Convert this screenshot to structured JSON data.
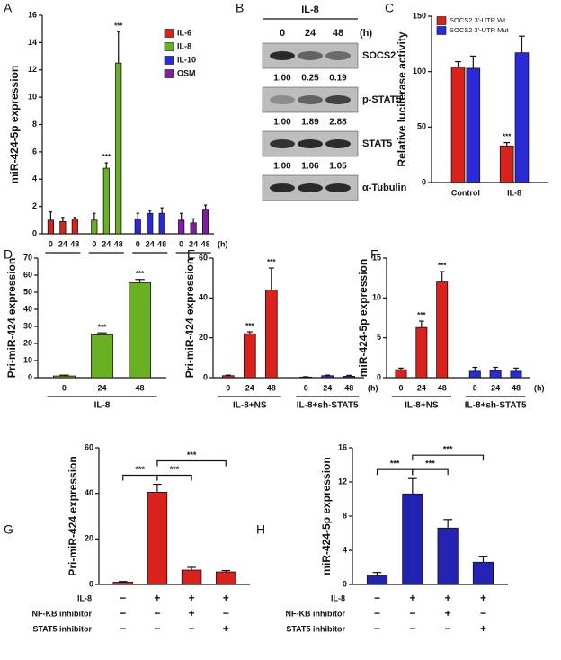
{
  "chart_data": [
    {
      "type": "bar",
      "panel": "A",
      "ylabel": "miR-424-5p expression",
      "ylim": [
        0,
        16
      ],
      "yticks": [
        0,
        2,
        4,
        6,
        8,
        10,
        12,
        14,
        16
      ],
      "xunit": "(h)",
      "legend": "upper right",
      "groups": [
        {
          "categories": [
            "0",
            "24",
            "48"
          ]
        },
        {
          "categories": [
            "0",
            "24",
            "48"
          ]
        },
        {
          "categories": [
            "0",
            "24",
            "48"
          ]
        },
        {
          "categories": [
            "0",
            "24",
            "48"
          ]
        }
      ],
      "series": [
        {
          "name": "IL-6",
          "color": "#d9221c",
          "values": [
            1.0,
            0.9,
            1.1,
            null,
            null,
            null,
            null,
            null,
            null,
            null,
            null,
            null
          ],
          "errors": [
            0.6,
            0.3,
            0.1,
            null,
            null,
            null,
            null,
            null,
            null,
            null,
            null,
            null
          ]
        },
        {
          "name": "IL-8",
          "color": "#6ab023",
          "values": [
            null,
            null,
            null,
            1.0,
            4.8,
            12.5,
            null,
            null,
            null,
            null,
            null,
            null
          ],
          "errors": [
            null,
            null,
            null,
            0.5,
            0.4,
            2.3,
            null,
            null,
            null,
            null,
            null,
            null
          ],
          "significance": [
            null,
            null,
            null,
            null,
            "***",
            "***",
            null,
            null,
            null,
            null,
            null,
            null
          ]
        },
        {
          "name": "IL-10",
          "color": "#2a2ad8",
          "values": [
            null,
            null,
            null,
            null,
            null,
            null,
            1.1,
            1.5,
            1.5,
            null,
            null,
            null
          ],
          "errors": [
            null,
            null,
            null,
            null,
            null,
            null,
            0.4,
            0.2,
            0.4,
            null,
            null,
            null
          ]
        },
        {
          "name": "OSM",
          "color": "#7d1fa0",
          "values": [
            null,
            null,
            null,
            null,
            null,
            null,
            null,
            null,
            null,
            1.0,
            0.8,
            1.8
          ],
          "errors": [
            null,
            null,
            null,
            null,
            null,
            null,
            null,
            null,
            null,
            0.5,
            0.3,
            0.3
          ]
        }
      ]
    },
    {
      "type": "bar",
      "panel": "C",
      "ylabel": "Relative luciferase activity",
      "ylim": [
        0,
        150
      ],
      "yticks": [
        0,
        50,
        100,
        150
      ],
      "legend": "upper left",
      "categories": [
        "Control",
        "IL-8"
      ],
      "series": [
        {
          "name": "SOCS2 3'-UTR Wt",
          "color": "#d9221c",
          "values": [
            104,
            33
          ],
          "errors": [
            5,
            3
          ],
          "significance": [
            null,
            "***"
          ]
        },
        {
          "name": "SOCS2 3'-UTR Mut",
          "color": "#2a2ad8",
          "values": [
            103,
            117
          ],
          "errors": [
            11,
            15
          ]
        }
      ]
    },
    {
      "type": "bar",
      "panel": "D",
      "ylabel": "Pri-miR-424 expression",
      "ylim": [
        0,
        70
      ],
      "yticks": [
        0,
        10,
        20,
        30,
        40,
        50,
        60,
        70
      ],
      "groups": [
        {
          "label": "IL-8",
          "categories": [
            "0",
            "24",
            "48"
          ]
        }
      ],
      "series": [
        {
          "color": "#6ab023",
          "values": [
            1,
            25,
            55.5
          ],
          "errors": [
            0.5,
            1.2,
            2
          ],
          "significance": [
            null,
            "***",
            "***"
          ]
        }
      ]
    },
    {
      "type": "bar",
      "panel": "E",
      "ylabel": "Pri-miR-424 expression",
      "ylim": [
        0,
        60
      ],
      "yticks": [
        0,
        20,
        40,
        60
      ],
      "xunit": "(h)",
      "groups": [
        {
          "label": "IL-8+NS",
          "categories": [
            "0",
            "24",
            "48"
          ]
        },
        {
          "label": "IL-8+sh-STAT5",
          "categories": [
            "0",
            "24",
            "48"
          ]
        }
      ],
      "series": [
        {
          "color": "#d9221c",
          "values": [
            1,
            22,
            44,
            null,
            null,
            null
          ],
          "errors": [
            0.3,
            1,
            11,
            null,
            null,
            null
          ],
          "significance": [
            null,
            "***",
            "***",
            null,
            null,
            null
          ]
        },
        {
          "color": "#2a2ad8",
          "values": [
            null,
            null,
            null,
            0.3,
            1,
            0.7
          ],
          "errors": [
            null,
            null,
            null,
            0.2,
            0.3,
            0.5
          ]
        }
      ]
    },
    {
      "type": "bar",
      "panel": "F",
      "ylabel": "miR-424-5p expression",
      "ylim": [
        0,
        15
      ],
      "yticks": [
        0,
        5,
        10,
        15
      ],
      "xunit": "(h)",
      "groups": [
        {
          "label": "IL-8+NS",
          "categories": [
            "0",
            "24",
            "48"
          ]
        },
        {
          "label": "IL-8+sh-STAT5",
          "categories": [
            "0",
            "24",
            "48"
          ]
        }
      ],
      "series": [
        {
          "color": "#d9221c",
          "values": [
            1,
            6.3,
            12,
            null,
            null,
            null
          ],
          "errors": [
            0.2,
            0.8,
            1.3,
            null,
            null,
            null
          ],
          "significance": [
            null,
            "***",
            "***",
            null,
            null,
            null
          ]
        },
        {
          "color": "#2a2ad8",
          "values": [
            null,
            null,
            null,
            0.8,
            0.9,
            0.8
          ],
          "errors": [
            null,
            null,
            null,
            0.5,
            0.4,
            0.4
          ]
        }
      ]
    },
    {
      "type": "bar",
      "panel": "G",
      "ylabel": "Pri-miR-424 expression",
      "ylim": [
        0,
        60
      ],
      "yticks": [
        0,
        20,
        40,
        60
      ],
      "categories": [
        null,
        null,
        null,
        null
      ],
      "series": [
        {
          "color": "#d9221c",
          "values": [
            1,
            40.5,
            6.3,
            5.5
          ],
          "errors": [
            0.3,
            3.5,
            1.2,
            0.6
          ]
        }
      ],
      "brackets": [
        {
          "label": "***",
          "bars": [
            0,
            1
          ]
        },
        {
          "label": "***",
          "bars": [
            1,
            2
          ]
        },
        {
          "label": "***",
          "bars": [
            1,
            3
          ]
        }
      ],
      "conditions": [
        {
          "label": "IL-8",
          "marks": [
            "−",
            "+",
            "+",
            "+"
          ]
        },
        {
          "label": "NF-KB inhibitor",
          "marks": [
            "−",
            "−",
            "+",
            "−"
          ]
        },
        {
          "label": "STAT5 inhibitor",
          "marks": [
            "−",
            "−",
            "−",
            "+"
          ]
        }
      ]
    },
    {
      "type": "bar",
      "panel": "H",
      "ylabel": "miR-424-5p expression",
      "ylim": [
        0,
        16
      ],
      "yticks": [
        0,
        4,
        8,
        12,
        16
      ],
      "categories": [
        null,
        null,
        null,
        null
      ],
      "series": [
        {
          "color": "#2323b3",
          "values": [
            1,
            10.6,
            6.6,
            2.6
          ],
          "errors": [
            0.4,
            1.8,
            1.0,
            0.7
          ]
        }
      ],
      "brackets": [
        {
          "label": "***",
          "bars": [
            0,
            1
          ]
        },
        {
          "label": "***",
          "bars": [
            1,
            2
          ]
        },
        {
          "label": "***",
          "bars": [
            1,
            3
          ]
        }
      ],
      "conditions": [
        {
          "label": "IL-8",
          "marks": [
            "−",
            "+",
            "+",
            "+"
          ]
        },
        {
          "label": "NF-KB inhibitor",
          "marks": [
            "−",
            "−",
            "+",
            "−"
          ]
        },
        {
          "label": "STAT5 inhibitor",
          "marks": [
            "−",
            "−",
            "−",
            "+"
          ]
        }
      ]
    }
  ],
  "panel_b": {
    "panel": "B",
    "title": "IL-8",
    "times": [
      "0",
      "24",
      "48"
    ],
    "unit": "(h)",
    "rows": [
      {
        "label": "SOCS2",
        "quant": [
          "1.00",
          "0.25",
          "0.19"
        ]
      },
      {
        "label": "p-STAT5",
        "quant": [
          "1.00",
          "1.89",
          "2.88"
        ]
      },
      {
        "label": "STAT5",
        "quant": [
          "1.00",
          "1.06",
          "1.05"
        ]
      },
      {
        "label": "α-Tubulin"
      }
    ]
  }
}
